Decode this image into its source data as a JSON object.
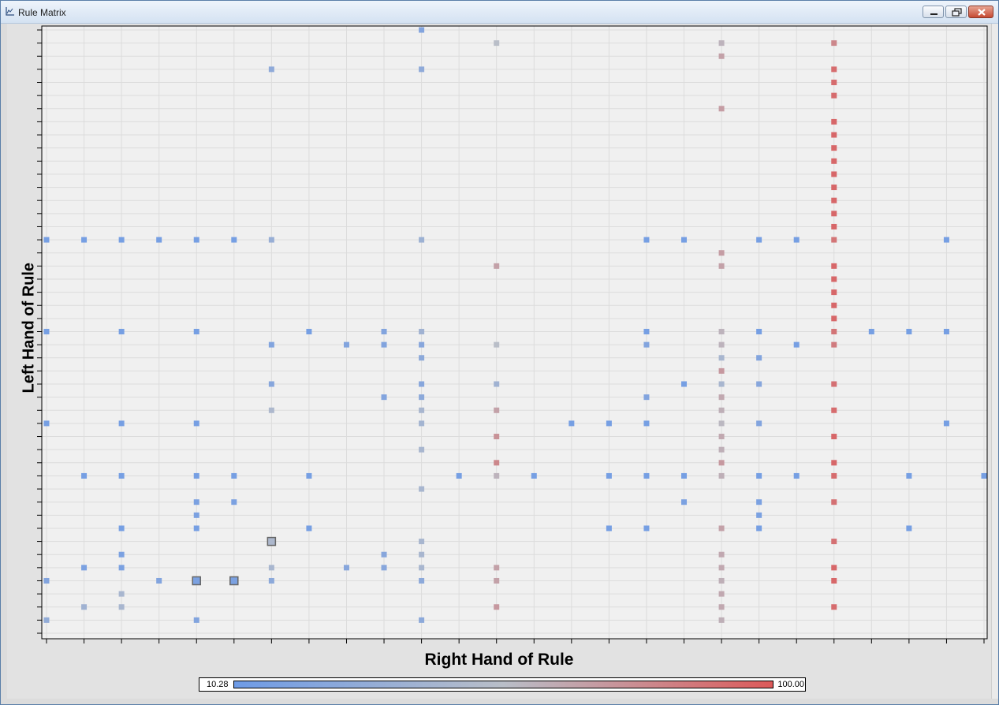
{
  "window": {
    "title": "Rule Matrix"
  },
  "chart_data": {
    "type": "heatmap",
    "xlabel": "Right Hand of Rule",
    "ylabel": "Left Hand of Rule",
    "n_cols": 26,
    "n_rows": 47,
    "color_scale": {
      "min_label": "10.28",
      "max_label": "100.00",
      "min_value": 10.28,
      "max_value": 100.0,
      "low_color": "#6e9be6",
      "mid_color": "#b9bec8",
      "high_color": "#dc5a5a"
    },
    "cells": [
      {
        "col": 10,
        "row": 0,
        "value": 22
      },
      {
        "col": 12,
        "row": 1,
        "value": 55
      },
      {
        "col": 18,
        "row": 1,
        "value": 60
      },
      {
        "col": 21,
        "row": 1,
        "value": 80
      },
      {
        "col": 18,
        "row": 2,
        "value": 68
      },
      {
        "col": 6,
        "row": 3,
        "value": 30
      },
      {
        "col": 10,
        "row": 3,
        "value": 30
      },
      {
        "col": 21,
        "row": 3,
        "value": 92
      },
      {
        "col": 21,
        "row": 4,
        "value": 92
      },
      {
        "col": 21,
        "row": 5,
        "value": 92
      },
      {
        "col": 18,
        "row": 6,
        "value": 70
      },
      {
        "col": 21,
        "row": 7,
        "value": 94
      },
      {
        "col": 21,
        "row": 8,
        "value": 94
      },
      {
        "col": 21,
        "row": 9,
        "value": 94
      },
      {
        "col": 21,
        "row": 10,
        "value": 94
      },
      {
        "col": 21,
        "row": 11,
        "value": 94
      },
      {
        "col": 21,
        "row": 12,
        "value": 94
      },
      {
        "col": 21,
        "row": 13,
        "value": 94
      },
      {
        "col": 21,
        "row": 14,
        "value": 94
      },
      {
        "col": 21,
        "row": 15,
        "value": 94
      },
      {
        "col": 0,
        "row": 16,
        "value": 15
      },
      {
        "col": 1,
        "row": 16,
        "value": 15
      },
      {
        "col": 2,
        "row": 16,
        "value": 15
      },
      {
        "col": 3,
        "row": 16,
        "value": 15
      },
      {
        "col": 4,
        "row": 16,
        "value": 15
      },
      {
        "col": 5,
        "row": 16,
        "value": 15
      },
      {
        "col": 6,
        "row": 16,
        "value": 35
      },
      {
        "col": 10,
        "row": 16,
        "value": 38
      },
      {
        "col": 16,
        "row": 16,
        "value": 15
      },
      {
        "col": 17,
        "row": 16,
        "value": 15
      },
      {
        "col": 19,
        "row": 16,
        "value": 15
      },
      {
        "col": 20,
        "row": 16,
        "value": 15
      },
      {
        "col": 21,
        "row": 16,
        "value": 88
      },
      {
        "col": 24,
        "row": 16,
        "value": 15
      },
      {
        "col": 18,
        "row": 17,
        "value": 70
      },
      {
        "col": 12,
        "row": 18,
        "value": 68
      },
      {
        "col": 18,
        "row": 18,
        "value": 68
      },
      {
        "col": 21,
        "row": 18,
        "value": 94
      },
      {
        "col": 21,
        "row": 19,
        "value": 94
      },
      {
        "col": 21,
        "row": 20,
        "value": 94
      },
      {
        "col": 21,
        "row": 21,
        "value": 94
      },
      {
        "col": 21,
        "row": 22,
        "value": 94
      },
      {
        "col": 0,
        "row": 23,
        "value": 15
      },
      {
        "col": 2,
        "row": 23,
        "value": 15
      },
      {
        "col": 4,
        "row": 23,
        "value": 15
      },
      {
        "col": 7,
        "row": 23,
        "value": 15
      },
      {
        "col": 9,
        "row": 23,
        "value": 22
      },
      {
        "col": 10,
        "row": 23,
        "value": 40
      },
      {
        "col": 16,
        "row": 23,
        "value": 15
      },
      {
        "col": 18,
        "row": 23,
        "value": 60
      },
      {
        "col": 19,
        "row": 23,
        "value": 15
      },
      {
        "col": 21,
        "row": 23,
        "value": 88
      },
      {
        "col": 22,
        "row": 23,
        "value": 15
      },
      {
        "col": 23,
        "row": 23,
        "value": 15
      },
      {
        "col": 24,
        "row": 23,
        "value": 15
      },
      {
        "col": 6,
        "row": 24,
        "value": 22
      },
      {
        "col": 8,
        "row": 24,
        "value": 22
      },
      {
        "col": 9,
        "row": 24,
        "value": 22
      },
      {
        "col": 10,
        "row": 24,
        "value": 25
      },
      {
        "col": 12,
        "row": 24,
        "value": 55
      },
      {
        "col": 16,
        "row": 24,
        "value": 22
      },
      {
        "col": 18,
        "row": 24,
        "value": 60
      },
      {
        "col": 20,
        "row": 24,
        "value": 15
      },
      {
        "col": 21,
        "row": 24,
        "value": 85
      },
      {
        "col": 10,
        "row": 25,
        "value": 28
      },
      {
        "col": 18,
        "row": 25,
        "value": 45
      },
      {
        "col": 19,
        "row": 25,
        "value": 22
      },
      {
        "col": 18,
        "row": 26,
        "value": 72
      },
      {
        "col": 6,
        "row": 27,
        "value": 25
      },
      {
        "col": 10,
        "row": 27,
        "value": 25
      },
      {
        "col": 12,
        "row": 27,
        "value": 40
      },
      {
        "col": 17,
        "row": 27,
        "value": 15
      },
      {
        "col": 18,
        "row": 27,
        "value": 45
      },
      {
        "col": 19,
        "row": 27,
        "value": 25
      },
      {
        "col": 21,
        "row": 27,
        "value": 90
      },
      {
        "col": 9,
        "row": 28,
        "value": 22
      },
      {
        "col": 10,
        "row": 28,
        "value": 28
      },
      {
        "col": 16,
        "row": 28,
        "value": 22
      },
      {
        "col": 18,
        "row": 28,
        "value": 65
      },
      {
        "col": 6,
        "row": 29,
        "value": 48
      },
      {
        "col": 10,
        "row": 29,
        "value": 45
      },
      {
        "col": 12,
        "row": 29,
        "value": 68
      },
      {
        "col": 18,
        "row": 29,
        "value": 62
      },
      {
        "col": 21,
        "row": 29,
        "value": 92
      },
      {
        "col": 0,
        "row": 30,
        "value": 15
      },
      {
        "col": 2,
        "row": 30,
        "value": 15
      },
      {
        "col": 4,
        "row": 30,
        "value": 15
      },
      {
        "col": 10,
        "row": 30,
        "value": 42
      },
      {
        "col": 14,
        "row": 30,
        "value": 15
      },
      {
        "col": 15,
        "row": 30,
        "value": 15
      },
      {
        "col": 16,
        "row": 30,
        "value": 15
      },
      {
        "col": 18,
        "row": 30,
        "value": 58
      },
      {
        "col": 19,
        "row": 30,
        "value": 22
      },
      {
        "col": 24,
        "row": 30,
        "value": 15
      },
      {
        "col": 12,
        "row": 31,
        "value": 75
      },
      {
        "col": 18,
        "row": 31,
        "value": 65
      },
      {
        "col": 21,
        "row": 31,
        "value": 94
      },
      {
        "col": 10,
        "row": 32,
        "value": 45
      },
      {
        "col": 18,
        "row": 32,
        "value": 62
      },
      {
        "col": 12,
        "row": 33,
        "value": 80
      },
      {
        "col": 18,
        "row": 33,
        "value": 72
      },
      {
        "col": 21,
        "row": 33,
        "value": 94
      },
      {
        "col": 1,
        "row": 34,
        "value": 15
      },
      {
        "col": 2,
        "row": 34,
        "value": 15
      },
      {
        "col": 4,
        "row": 34,
        "value": 15
      },
      {
        "col": 5,
        "row": 34,
        "value": 15
      },
      {
        "col": 7,
        "row": 34,
        "value": 15
      },
      {
        "col": 11,
        "row": 34,
        "value": 15
      },
      {
        "col": 12,
        "row": 34,
        "value": 60
      },
      {
        "col": 13,
        "row": 34,
        "value": 15
      },
      {
        "col": 15,
        "row": 34,
        "value": 15
      },
      {
        "col": 16,
        "row": 34,
        "value": 15
      },
      {
        "col": 17,
        "row": 34,
        "value": 15
      },
      {
        "col": 18,
        "row": 34,
        "value": 62
      },
      {
        "col": 19,
        "row": 34,
        "value": 15
      },
      {
        "col": 20,
        "row": 34,
        "value": 15
      },
      {
        "col": 21,
        "row": 34,
        "value": 92
      },
      {
        "col": 23,
        "row": 34,
        "value": 15
      },
      {
        "col": 25,
        "row": 34,
        "value": 15
      },
      {
        "col": 10,
        "row": 35,
        "value": 45
      },
      {
        "col": 4,
        "row": 36,
        "value": 18
      },
      {
        "col": 5,
        "row": 36,
        "value": 18
      },
      {
        "col": 17,
        "row": 36,
        "value": 18
      },
      {
        "col": 19,
        "row": 36,
        "value": 18
      },
      {
        "col": 21,
        "row": 36,
        "value": 90
      },
      {
        "col": 4,
        "row": 37,
        "value": 18
      },
      {
        "col": 19,
        "row": 37,
        "value": 18
      },
      {
        "col": 2,
        "row": 38,
        "value": 15
      },
      {
        "col": 4,
        "row": 38,
        "value": 15
      },
      {
        "col": 7,
        "row": 38,
        "value": 15
      },
      {
        "col": 15,
        "row": 38,
        "value": 15
      },
      {
        "col": 16,
        "row": 38,
        "value": 15
      },
      {
        "col": 18,
        "row": 38,
        "value": 68
      },
      {
        "col": 19,
        "row": 38,
        "value": 15
      },
      {
        "col": 23,
        "row": 38,
        "value": 15
      },
      {
        "col": 6,
        "row": 39,
        "value": 48,
        "selected": true
      },
      {
        "col": 10,
        "row": 39,
        "value": 45
      },
      {
        "col": 21,
        "row": 39,
        "value": 90
      },
      {
        "col": 2,
        "row": 40,
        "value": 18
      },
      {
        "col": 9,
        "row": 40,
        "value": 25
      },
      {
        "col": 10,
        "row": 40,
        "value": 45
      },
      {
        "col": 18,
        "row": 40,
        "value": 65
      },
      {
        "col": 1,
        "row": 41,
        "value": 18
      },
      {
        "col": 2,
        "row": 41,
        "value": 18
      },
      {
        "col": 6,
        "row": 41,
        "value": 45
      },
      {
        "col": 8,
        "row": 41,
        "value": 25
      },
      {
        "col": 9,
        "row": 41,
        "value": 25
      },
      {
        "col": 10,
        "row": 41,
        "value": 45
      },
      {
        "col": 12,
        "row": 41,
        "value": 68
      },
      {
        "col": 18,
        "row": 41,
        "value": 65
      },
      {
        "col": 21,
        "row": 41,
        "value": 94
      },
      {
        "col": 0,
        "row": 42,
        "value": 22
      },
      {
        "col": 3,
        "row": 42,
        "value": 22
      },
      {
        "col": 4,
        "row": 42,
        "value": 18,
        "selected": true
      },
      {
        "col": 5,
        "row": 42,
        "value": 18,
        "selected": true
      },
      {
        "col": 6,
        "row": 42,
        "value": 28
      },
      {
        "col": 10,
        "row": 42,
        "value": 28
      },
      {
        "col": 12,
        "row": 42,
        "value": 68
      },
      {
        "col": 18,
        "row": 42,
        "value": 62
      },
      {
        "col": 21,
        "row": 42,
        "value": 94
      },
      {
        "col": 2,
        "row": 43,
        "value": 45
      },
      {
        "col": 18,
        "row": 43,
        "value": 65
      },
      {
        "col": 1,
        "row": 44,
        "value": 40
      },
      {
        "col": 2,
        "row": 44,
        "value": 45
      },
      {
        "col": 12,
        "row": 44,
        "value": 72
      },
      {
        "col": 18,
        "row": 44,
        "value": 65
      },
      {
        "col": 21,
        "row": 44,
        "value": 92
      },
      {
        "col": 0,
        "row": 45,
        "value": 32
      },
      {
        "col": 4,
        "row": 45,
        "value": 22
      },
      {
        "col": 10,
        "row": 45,
        "value": 28
      },
      {
        "col": 18,
        "row": 45,
        "value": 62
      }
    ]
  }
}
